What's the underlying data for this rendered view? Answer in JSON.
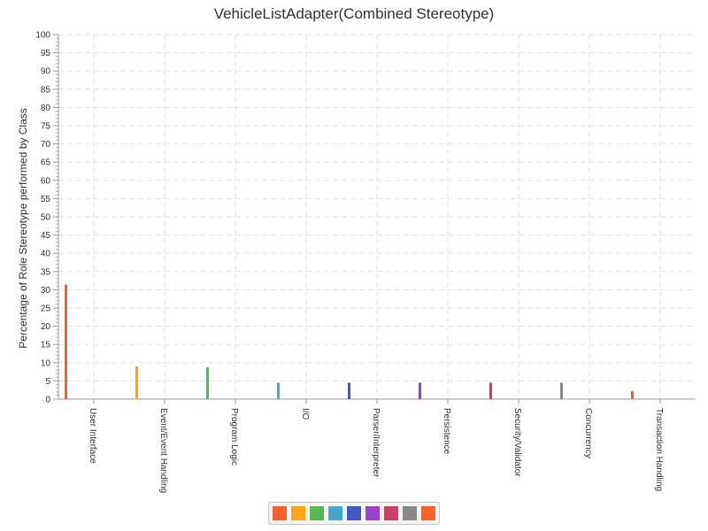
{
  "chart_data": {
    "type": "bar",
    "title": "VehicleListAdapter(Combined Stereotype)",
    "xlabel": "",
    "ylabel": "Percentage of Role Stereotype performed by Class",
    "ylim": [
      0,
      100
    ],
    "ytick_step": 5,
    "grid": true,
    "legend_position": "bottom-center",
    "categories": [
      "User Interface",
      "Event/Event Handling",
      "Program Logic",
      "I/O",
      "Parser/Interpreter",
      "Persistence",
      "Security/Validator",
      "Concurrency",
      "Transaction Handling"
    ],
    "values": [
      31.4,
      9.0,
      8.7,
      4.5,
      4.5,
      4.5,
      4.5,
      4.5,
      2.2
    ],
    "colors": [
      "#f3622d",
      "#fba71b",
      "#57b757",
      "#41a9c9",
      "#4258c9",
      "#9a42c8",
      "#c84164",
      "#888888",
      "#f3622d"
    ]
  }
}
